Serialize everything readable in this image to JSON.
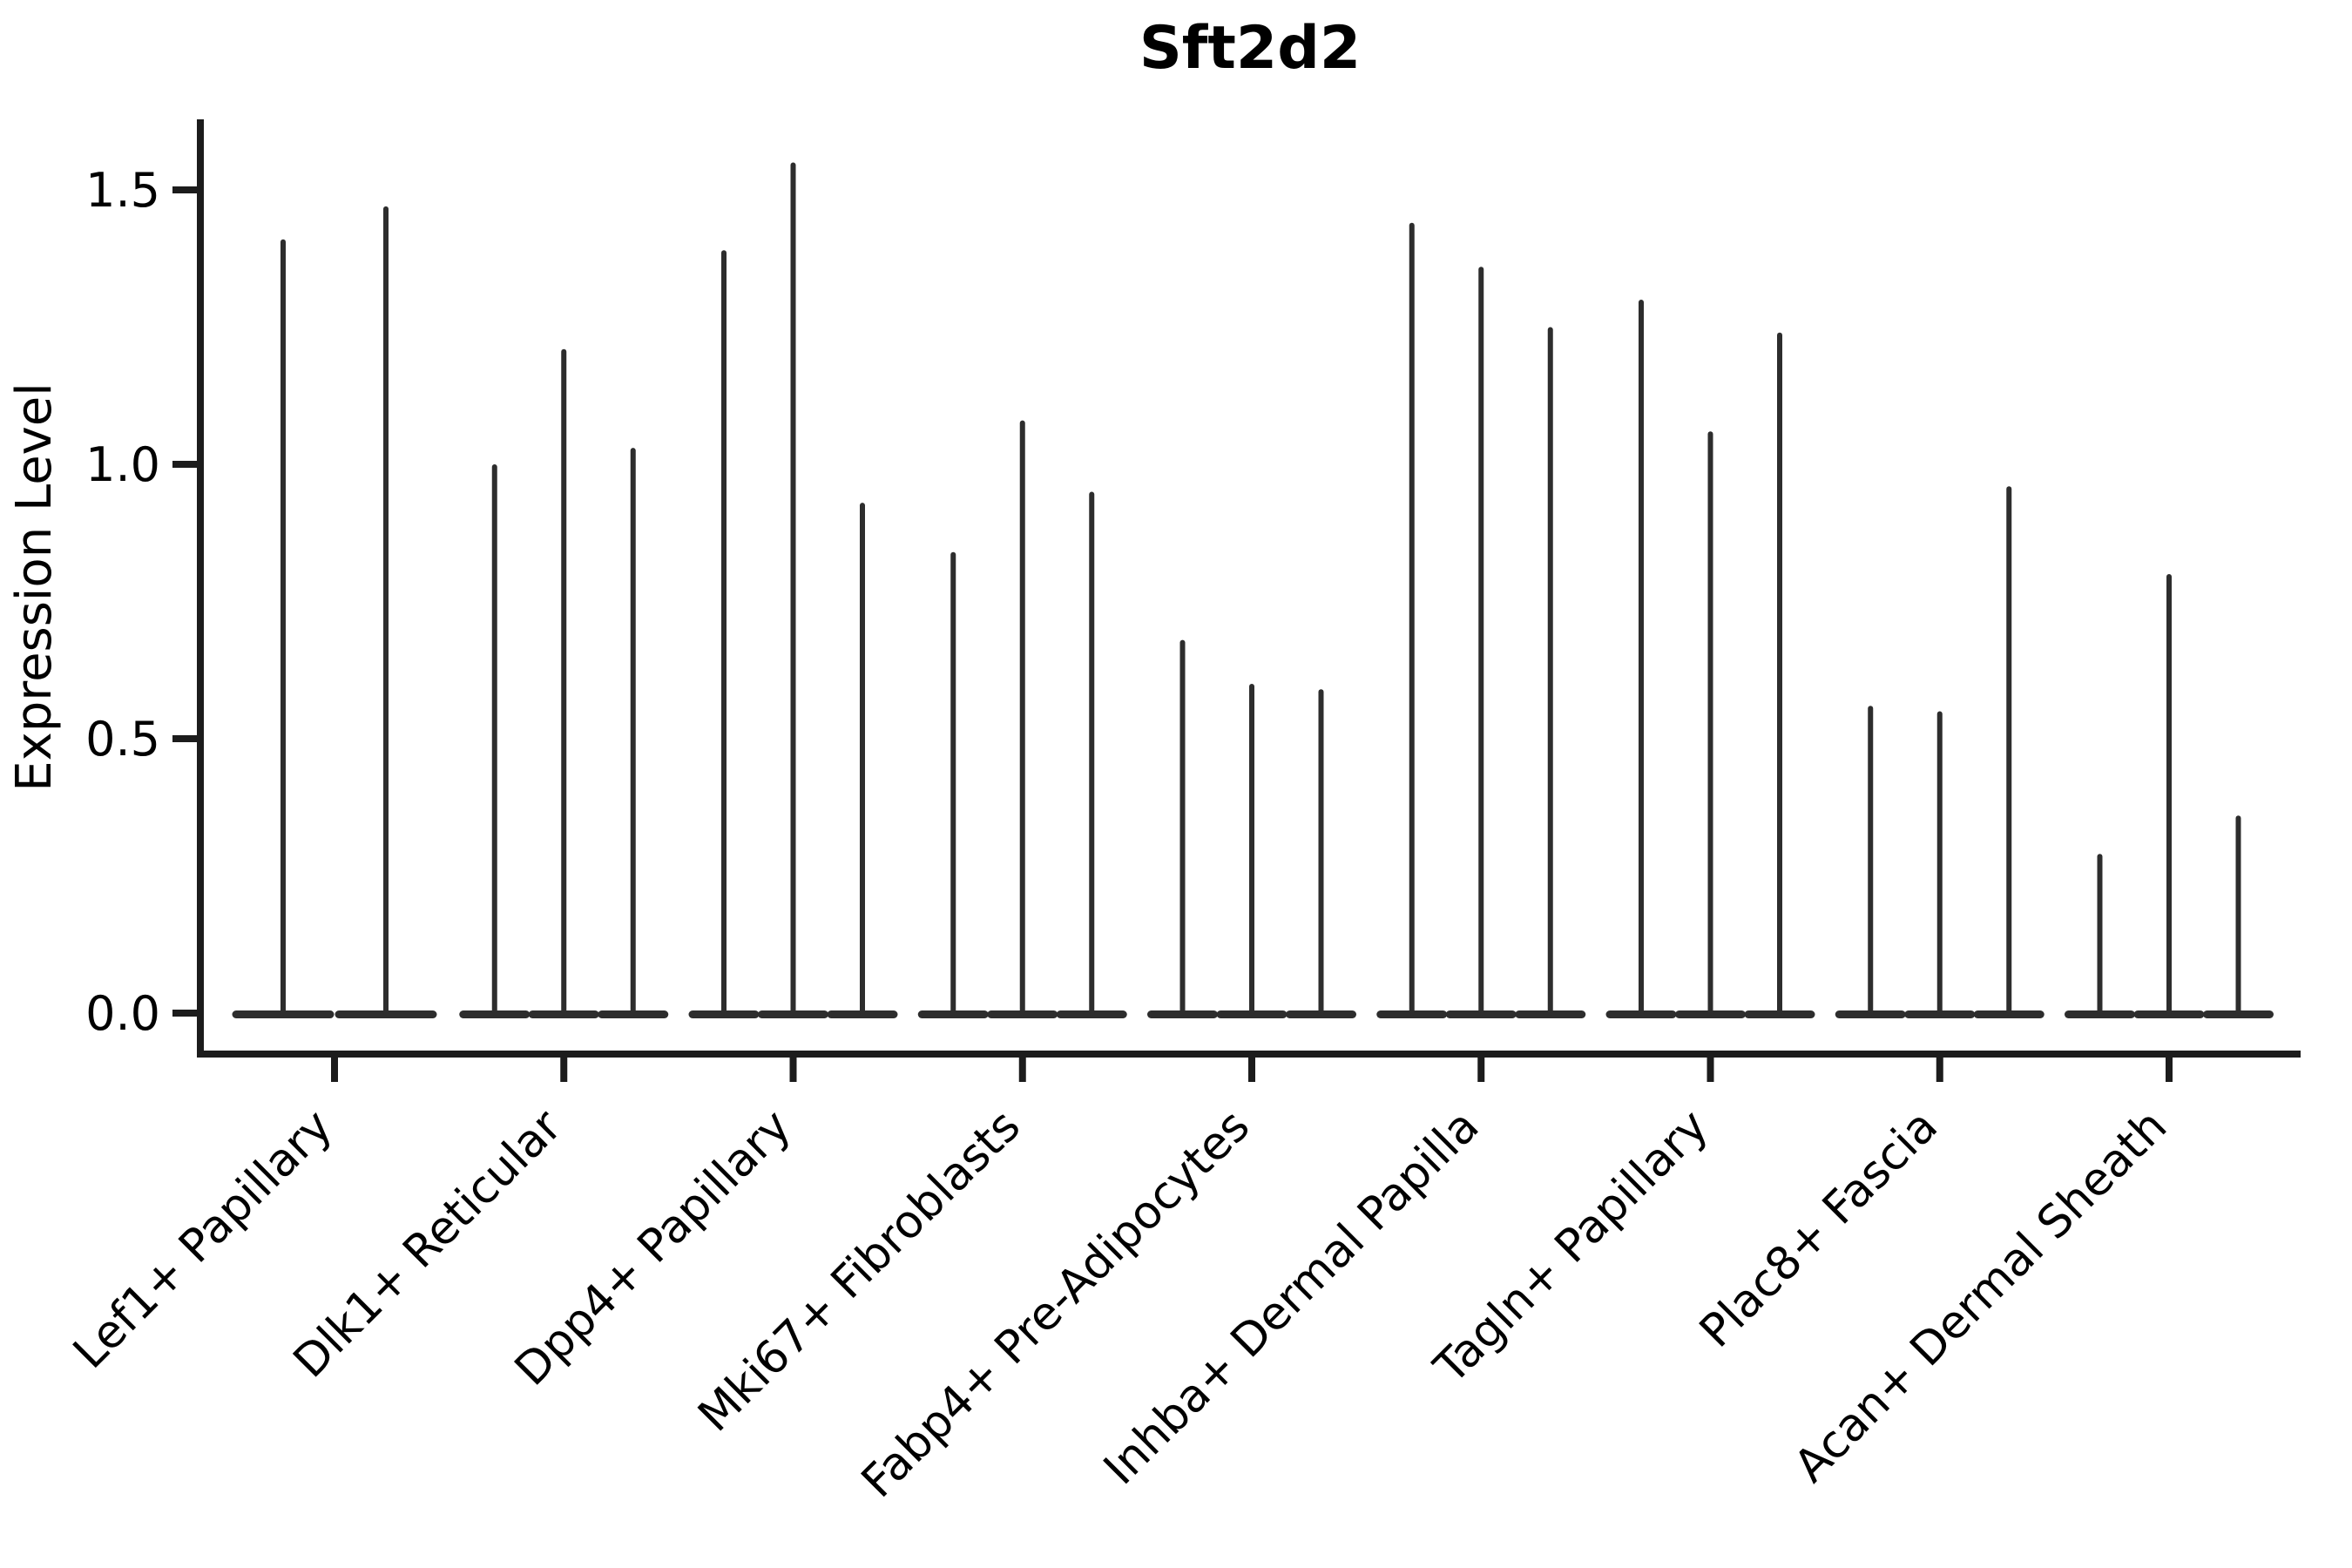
{
  "chart_data": {
    "type": "violin",
    "title": "Sft2d2",
    "ylabel": "Expression Level",
    "xlabel": "",
    "legend": "none",
    "grid": false,
    "background": "#ffffff",
    "ylim": [
      -0.075,
      1.63
    ],
    "yticks": [
      0.0,
      0.5,
      1.0,
      1.5
    ],
    "ytick_labels": [
      "0.0",
      "0.5",
      "1.0",
      "1.5"
    ],
    "categories": [
      "Lef1+ Papillary",
      "Dlk1+ Reticular",
      "Dpp4+ Papillary",
      "Mki67+ Fibroblasts",
      "Fabp4+ Pre-Adipocytes",
      "Inhba+ Dermal Papilla",
      "Tagln+ Papillary",
      "Plac8+ Fascia",
      "Acan+ Dermal Sheath"
    ],
    "series_description": "Each category shows thin violins (max expression spikes with dense mass at 0); group 1 has 2 violins, all others have 3",
    "violin_max_values": [
      [
        1.41,
        1.47
      ],
      [
        1.0,
        1.21,
        1.03
      ],
      [
        1.39,
        1.55,
        0.93
      ],
      [
        0.84,
        1.08,
        0.95
      ],
      [
        0.68,
        0.6,
        0.59
      ],
      [
        1.44,
        1.36,
        1.25
      ],
      [
        1.3,
        1.06,
        1.24
      ],
      [
        0.56,
        0.55,
        0.96
      ],
      [
        0.29,
        0.8,
        0.36
      ]
    ],
    "colors": {
      "violin": "#2d2d2d",
      "axis": "#1c1c1c",
      "text": "#000000"
    }
  }
}
